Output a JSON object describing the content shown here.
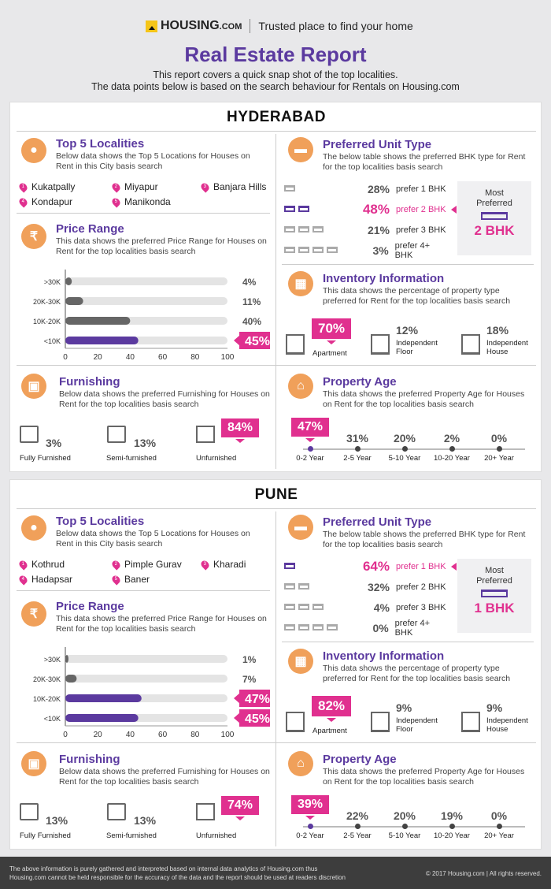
{
  "header": {
    "brand": "HOUSING",
    "brand_suffix": ".COM",
    "tagline": "Trusted place to find your home",
    "title": "Real Estate Report",
    "sub1": "This report covers a quick snap shot of the top localities.",
    "sub2": "The data points below is based on the search behaviour for Rentals on Housing.com"
  },
  "labels": {
    "top5_title": "Top 5 Localities",
    "top5_desc": "Below data shows the Top 5 Locations for Houses on Rent in this City basis search",
    "price_title": "Price Range",
    "price_desc": "This data shows the preferred Price Range for Houses on Rent for the top localities basis search",
    "furn_title": "Furnishing",
    "furn_desc": "Below data shows the preferred Furnishing for Houses on Rent for the top localities basis search",
    "unit_title": "Preferred Unit Type",
    "unit_desc": "The below table shows the preferred BHK type for Rent for the top localities basis search",
    "inv_title": "Inventory Information",
    "inv_desc": "This data shows the percentage of property type preferred for Rent for the top localities basis search",
    "age_title": "Property Age",
    "age_desc": "This data shows the preferred Property Age for Houses on Rent for the top localities basis search",
    "most_preferred": "Most Preferred",
    "fully": "Fully Furnished",
    "semi": "Semi-furnished",
    "unf": "Unfurnished",
    "apt": "Apartment",
    "indfloor": "Independent Floor",
    "indhouse": "Independent House"
  },
  "cities": [
    {
      "name": "HYDERABAD",
      "localities": [
        "Kukatpally",
        "Miyapur",
        "Banjara Hills",
        "Kondapur",
        "Manikonda"
      ],
      "unit": [
        {
          "pct": "28%",
          "label": "prefer 1 BHK"
        },
        {
          "pct": "48%",
          "label": "prefer 2 BHK"
        },
        {
          "pct": "21%",
          "label": "prefer 3 BHK"
        },
        {
          "pct": "3%",
          "label": "prefer 4+ BHK"
        }
      ],
      "most": "2 BHK",
      "inventory": {
        "apt": "70%",
        "floor": "12%",
        "house": "18%"
      },
      "furnishing": {
        "fully": "3%",
        "semi": "13%",
        "unf": "84%"
      },
      "age": [
        {
          "pct": "47%",
          "label": "0-2 Year"
        },
        {
          "pct": "31%",
          "label": "2-5 Year"
        },
        {
          "pct": "20%",
          "label": "5-10 Year"
        },
        {
          "pct": "2%",
          "label": "10-20 Year"
        },
        {
          "pct": "0%",
          "label": "20+ Year"
        }
      ]
    },
    {
      "name": "PUNE",
      "localities": [
        "Kothrud",
        "Pimple Gurav",
        "Kharadi",
        "Hadapsar",
        "Baner"
      ],
      "unit": [
        {
          "pct": "64%",
          "label": "prefer 1 BHK"
        },
        {
          "pct": "32%",
          "label": "prefer 2 BHK"
        },
        {
          "pct": "4%",
          "label": "prefer 3 BHK"
        },
        {
          "pct": "0%",
          "label": "prefer 4+ BHK"
        }
      ],
      "most": "1 BHK",
      "inventory": {
        "apt": "82%",
        "floor": "9%",
        "house": "9%"
      },
      "furnishing": {
        "fully": "13%",
        "semi": "13%",
        "unf": "74%"
      },
      "age": [
        {
          "pct": "39%",
          "label": "0-2 Year"
        },
        {
          "pct": "22%",
          "label": "2-5 Year"
        },
        {
          "pct": "20%",
          "label": "5-10 Year"
        },
        {
          "pct": "19%",
          "label": "10-20 Year"
        },
        {
          "pct": "0%",
          "label": "20+ Year"
        }
      ]
    }
  ],
  "chart_data": [
    {
      "type": "bar",
      "orientation": "horizontal",
      "categories": [
        ">30K",
        "20K-30K",
        "10K-20K",
        "<10K"
      ],
      "values": [
        4,
        11,
        40,
        45
      ],
      "value_labels": [
        "4%",
        "11%",
        "40%",
        "45%"
      ],
      "xticks": [
        0,
        20,
        40,
        60,
        80,
        100
      ],
      "xlim": [
        0,
        100
      ]
    },
    {
      "type": "bar",
      "orientation": "horizontal",
      "categories": [
        ">30K",
        "20K-30K",
        "10K-20K",
        "<10K"
      ],
      "values": [
        1,
        7,
        47,
        45
      ],
      "value_labels": [
        "1%",
        "7%",
        "47%",
        "45%"
      ],
      "xticks": [
        0,
        20,
        40,
        60,
        80,
        100
      ],
      "xlim": [
        0,
        100
      ]
    }
  ],
  "colors": {
    "purple": "#5b3a9f",
    "pink": "#e0308f",
    "orange": "#f0a05a",
    "grey": "#666666",
    "track": "#e4e4e4"
  },
  "footer": {
    "disclaimer1": "The above information is purely gathered and interpreted based on internal data analytics of Housing.com thus",
    "disclaimer2": "Housing.com cannot be held responsible for the accuracy of the data and the report should be used at readers discretion",
    "copyright": "© 2017 Housing.com | All rights reserved."
  }
}
